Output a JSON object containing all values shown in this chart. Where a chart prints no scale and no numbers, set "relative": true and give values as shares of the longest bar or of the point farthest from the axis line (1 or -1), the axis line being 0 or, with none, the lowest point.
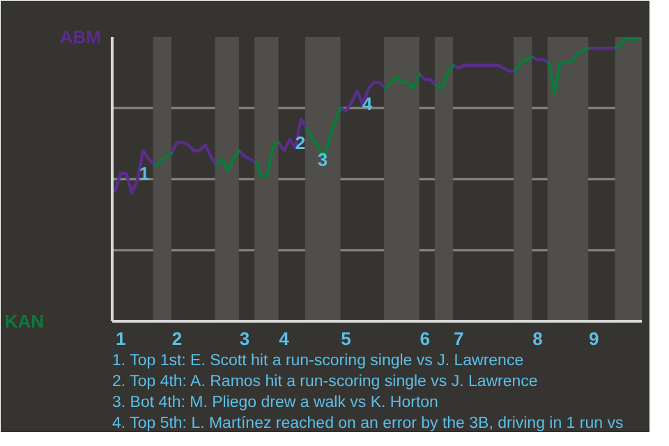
{
  "chart_data": {
    "type": "line",
    "relative": true,
    "grid": "y",
    "marker": "none",
    "line_style": "solid",
    "categories": [
      null,
      "1",
      null,
      null,
      null,
      null,
      null,
      null,
      null,
      null,
      null,
      "2",
      null,
      null,
      null,
      null,
      null,
      null,
      null,
      null,
      null,
      null,
      null,
      "3",
      null,
      null,
      null,
      null,
      null,
      null,
      "4",
      null,
      null,
      null,
      null,
      null,
      null,
      null,
      null,
      null,
      null,
      "5",
      null,
      null,
      null,
      null,
      null,
      null,
      null,
      null,
      null,
      null,
      null,
      null,
      null,
      "6",
      null,
      null,
      null,
      null,
      null,
      "7",
      null,
      null,
      null,
      null,
      null,
      null,
      null,
      null,
      null,
      null,
      null,
      null,
      null,
      "8",
      null,
      null,
      null,
      null,
      null,
      null,
      null,
      null,
      null,
      "9",
      null,
      null,
      null,
      null,
      null,
      null,
      null,
      null
    ],
    "series": [
      {
        "color": "#5a2d8c",
        "values": [
          0.46,
          0.52,
          0.52,
          0.45,
          0.5,
          0.6,
          0.57,
          0.55,
          null,
          null,
          0.59,
          0.63,
          0.63,
          0.62,
          0.6,
          0.6,
          0.62,
          0.58,
          0.55,
          null,
          null,
          null,
          0.6,
          0.58,
          0.57,
          0.56,
          null,
          null,
          null,
          0.63,
          0.6,
          0.64,
          0.61,
          0.71,
          0.68,
          null,
          null,
          null,
          null,
          null,
          0.75,
          0.74,
          0.77,
          0.81,
          0.76,
          0.82,
          0.84,
          0.84,
          0.82,
          null,
          null,
          null,
          null,
          null,
          0.87,
          0.85,
          0.85,
          0.83,
          null,
          null,
          0.9,
          0.89,
          0.9,
          0.9,
          0.9,
          0.9,
          0.9,
          0.9,
          0.9,
          0.89,
          0.88,
          0.88,
          null,
          null,
          0.93,
          0.92,
          0.92,
          0.91,
          null,
          null,
          null,
          null,
          null,
          null,
          0.96,
          0.96,
          0.96,
          0.96,
          0.96,
          0.96,
          null,
          null,
          null,
          null
        ]
      },
      {
        "color": "#0b7a3b",
        "values": [
          null,
          null,
          null,
          null,
          null,
          null,
          null,
          0.55,
          0.56,
          0.58,
          0.59,
          null,
          null,
          null,
          null,
          null,
          null,
          null,
          0.55,
          0.57,
          0.53,
          0.57,
          0.6,
          null,
          null,
          0.56,
          0.51,
          0.51,
          0.61,
          0.63,
          null,
          null,
          null,
          null,
          0.68,
          0.64,
          0.62,
          0.57,
          0.64,
          0.7,
          0.75,
          null,
          null,
          null,
          null,
          null,
          null,
          null,
          0.82,
          0.84,
          0.86,
          0.84,
          0.84,
          0.82,
          0.87,
          null,
          null,
          0.83,
          0.82,
          0.87,
          0.9,
          null,
          null,
          null,
          null,
          null,
          null,
          null,
          null,
          null,
          null,
          0.88,
          0.91,
          0.92,
          0.93,
          null,
          null,
          0.91,
          0.8,
          0.91,
          0.91,
          0.91,
          0.94,
          0.95,
          0.96,
          null,
          null,
          null,
          null,
          0.96,
          0.98,
          1.0,
          0.99,
          1.0
        ]
      }
    ],
    "annotations": [
      "ABM",
      "KAN",
      "1",
      "2",
      "3",
      "4",
      "1. Top 1st: E. Scott hit a run-scoring single vs J. Lawrence",
      "2. Top 4th: A. Ramos hit a run-scoring single vs J. Lawrence",
      "3. Bot 4th: M. Pliego drew a walk vs K. Horton",
      "4. Top 5th: L. Martínez reached on an error by the 3B, driving in 1 run vs"
    ]
  }
}
